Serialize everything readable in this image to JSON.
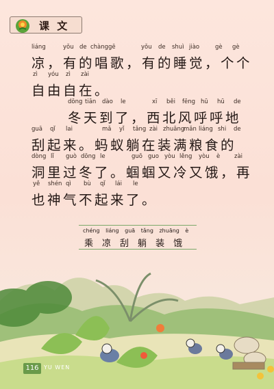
{
  "header": {
    "label": "课 文",
    "icon": "flower-icon"
  },
  "lines": [
    {
      "pinyin": [
        "liáng",
        "yǒu",
        "de",
        "chàng",
        "gē",
        "yǒu",
        "de",
        "shuì",
        "jiào",
        "gè",
        "gè"
      ],
      "hanzi": "凉，有的唱歌，有的睡觉，个个"
    },
    {
      "pinyin": [
        "zì",
        "yóu",
        "zì",
        "zài"
      ],
      "hanzi": "自由自在。"
    },
    {
      "pinyin": [
        "dōng",
        "tiān",
        "dào",
        "le",
        "xī",
        "běi",
        "fēng",
        "hū",
        "hū",
        "de"
      ],
      "hanzi": "冬天到了，西北风呼呼地"
    },
    {
      "pinyin": [
        "guā",
        "qǐ",
        "lai",
        "mǎ",
        "yǐ",
        "tǎng",
        "zài",
        "zhuāng",
        "mǎn",
        "liáng",
        "shi",
        "de"
      ],
      "hanzi": "刮起来。蚂蚁躺在装满粮食的"
    },
    {
      "pinyin": [
        "dòng",
        "lǐ",
        "guò",
        "dōng",
        "le",
        "guō",
        "guo",
        "yòu",
        "lěng",
        "yòu",
        "è",
        "zài"
      ],
      "hanzi": "洞里过冬了。蝈蝈又冷又饿，再"
    },
    {
      "pinyin": [
        "yě",
        "shén",
        "qì",
        "bù",
        "qǐ",
        "lái",
        "le"
      ],
      "hanzi": "也神气不起来了。"
    }
  ],
  "vocab": {
    "pinyin": [
      "chéng",
      "liáng",
      "guā",
      "tǎng",
      "zhuāng",
      "è"
    ],
    "hanzi": [
      "乘",
      "凉",
      "刮",
      "躺",
      "装",
      "饿"
    ]
  },
  "footer": {
    "page_number": "116",
    "tag": "YU WEN"
  }
}
